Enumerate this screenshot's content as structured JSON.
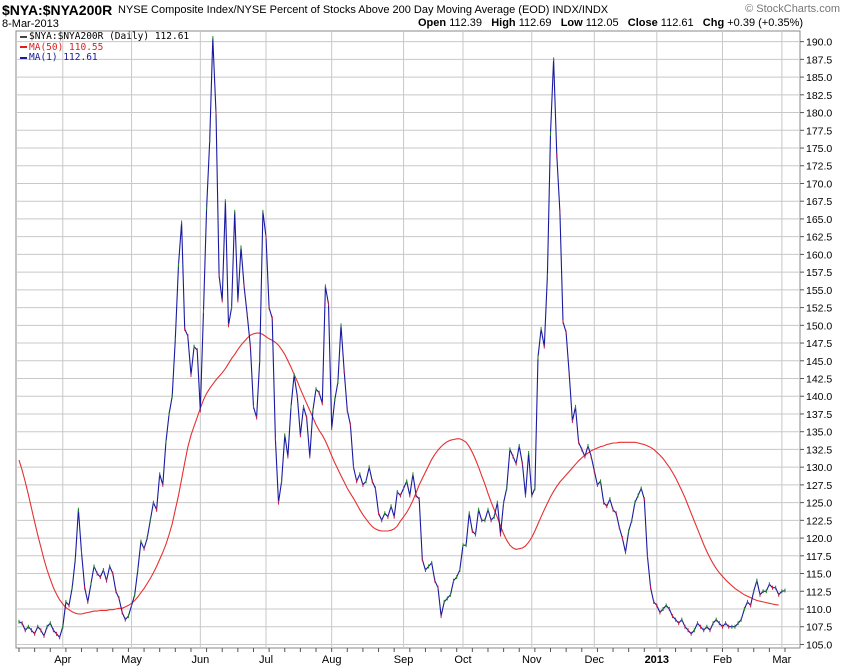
{
  "header": {
    "symbol": "$NYA:$NYA200R",
    "description": "NYSE Composite Index/NYSE Percent of Stocks Above 200 Day Moving Average (EOD)  INDX/INDX",
    "watermark": "© StockCharts.com",
    "date": "8-Mar-2013",
    "open_label": "Open",
    "open": "112.39",
    "high_label": "High",
    "high": "112.69",
    "low_label": "Low",
    "low": "112.05",
    "close_label": "Close",
    "close": "112.61",
    "chg_label": "Chg",
    "chg": "+0.39 (+0.35%)"
  },
  "legend": [
    {
      "text": "$NYA:$NYA200R (Daily) 112.61",
      "color": "#444444"
    },
    {
      "text": "MA(50) 110.55",
      "color": "#e02020"
    },
    {
      "text": "MA(1) 112.61",
      "color": "#1a1aa0"
    }
  ],
  "colors": {
    "price": "#1a1aa0",
    "ma50": "#e63030",
    "grid": "#c8c8c8",
    "up_tick": "#1f8a1f",
    "down_tick": "#c0204a"
  },
  "chart_data": {
    "type": "line",
    "xlabel": "",
    "ylabel": "",
    "ylim": [
      104.5,
      191.5
    ],
    "y_ticks": [
      105.0,
      107.5,
      110.0,
      112.5,
      115.0,
      117.5,
      120.0,
      122.5,
      125.0,
      127.5,
      130.0,
      132.5,
      135.0,
      137.5,
      140.0,
      142.5,
      145.0,
      147.5,
      150.0,
      152.5,
      155.0,
      157.5,
      160.0,
      162.5,
      165.0,
      167.5,
      170.0,
      172.5,
      175.0,
      177.5,
      180.0,
      182.5,
      185.0,
      187.5,
      190.0
    ],
    "x_ticks": [
      {
        "label": "Apr",
        "idx": 14,
        "bold": false
      },
      {
        "label": "May",
        "idx": 36,
        "bold": false
      },
      {
        "label": "Jun",
        "idx": 58,
        "bold": false
      },
      {
        "label": "Jul",
        "idx": 79,
        "bold": false
      },
      {
        "label": "Aug",
        "idx": 100,
        "bold": false
      },
      {
        "label": "Sep",
        "idx": 123,
        "bold": false
      },
      {
        "label": "Oct",
        "idx": 142,
        "bold": false
      },
      {
        "label": "Nov",
        "idx": 164,
        "bold": false
      },
      {
        "label": "Dec",
        "idx": 184,
        "bold": false
      },
      {
        "label": "2013",
        "idx": 204,
        "bold": true
      },
      {
        "label": "Feb",
        "idx": 225,
        "bold": false
      },
      {
        "label": "Mar",
        "idx": 244,
        "bold": false
      }
    ],
    "series": [
      {
        "name": "MA(1)",
        "values": [
          108.2,
          108.0,
          107.0,
          107.5,
          107.0,
          106.5,
          107.5,
          107.0,
          106.2,
          107.5,
          108.0,
          107.0,
          106.5,
          106.0,
          107.5,
          111.0,
          110.5,
          113.0,
          117.0,
          124.0,
          118.0,
          113.0,
          111.0,
          113.5,
          116.0,
          115.0,
          114.5,
          115.5,
          114.0,
          116.0,
          115.0,
          112.5,
          111.5,
          109.5,
          108.5,
          109.0,
          110.5,
          112.0,
          115.5,
          119.5,
          118.5,
          120.0,
          122.5,
          125.0,
          124.0,
          129.0,
          127.5,
          133.5,
          137.5,
          140.0,
          148.0,
          158.5,
          164.5,
          149.5,
          148.5,
          143.0,
          147.0,
          146.5,
          138.0,
          152.0,
          166.5,
          176.0,
          190.5,
          180.0,
          157.0,
          153.5,
          167.5,
          150.0,
          152.5,
          166.0,
          153.5,
          161.0,
          155.5,
          151.5,
          147.0,
          138.5,
          137.0,
          145.0,
          166.0,
          162.5,
          152.5,
          151.0,
          134.0,
          125.0,
          128.0,
          134.5,
          131.5,
          138.5,
          143.0,
          140.0,
          134.5,
          138.5,
          137.0,
          131.5,
          138.0,
          141.0,
          140.5,
          139.0,
          155.5,
          153.0,
          135.5,
          139.5,
          142.0,
          150.0,
          143.5,
          138.0,
          136.0,
          130.0,
          128.0,
          129.0,
          127.5,
          128.0,
          130.0,
          128.0,
          127.0,
          123.5,
          122.5,
          123.5,
          123.0,
          124.5,
          123.0,
          126.5,
          126.0,
          127.0,
          128.0,
          126.0,
          129.0,
          126.0,
          125.5,
          117.0,
          115.5,
          116.0,
          116.5,
          114.0,
          113.0,
          109.0,
          111.0,
          111.5,
          112.0,
          114.0,
          114.5,
          115.5,
          119.0,
          119.0,
          123.5,
          121.0,
          120.5,
          124.0,
          122.5,
          122.5,
          124.0,
          122.5,
          123.0,
          125.0,
          120.5,
          125.0,
          127.0,
          132.5,
          131.5,
          130.5,
          133.0,
          130.5,
          126.0,
          132.0,
          126.0,
          127.0,
          145.5,
          149.5,
          147.0,
          157.0,
          177.0,
          187.5,
          174.0,
          166.0,
          150.5,
          149.0,
          143.0,
          136.5,
          138.5,
          133.5,
          132.5,
          131.5,
          133.0,
          131.5,
          129.5,
          127.5,
          128.0,
          125.0,
          124.5,
          125.5,
          124.0,
          123.5,
          121.5,
          120.0,
          118.0,
          121.0,
          122.5,
          125.0,
          126.0,
          127.0,
          125.5,
          117.5,
          113.0,
          111.0,
          110.5,
          109.5,
          110.0,
          110.5,
          110.0,
          109.0,
          108.5,
          108.0,
          108.5,
          107.5,
          107.0,
          106.5,
          107.0,
          108.0,
          107.5,
          107.0,
          107.5,
          107.0,
          108.0,
          108.5,
          108.0,
          107.5,
          108.0,
          107.5,
          107.5,
          107.5,
          108.0,
          108.5,
          110.0,
          111.0,
          110.5,
          112.5,
          114.0,
          112.0,
          112.5,
          112.5,
          113.5,
          113.0,
          113.0,
          112.0,
          112.5,
          112.6
        ]
      },
      {
        "name": "MA(50)",
        "values": [
          131.0,
          129.6,
          127.9,
          126.1,
          124.2,
          122.3,
          120.4,
          118.7,
          117.0,
          115.5,
          114.2,
          113.0,
          112.1,
          111.3,
          110.7,
          110.2,
          109.9,
          109.6,
          109.4,
          109.3,
          109.3,
          109.4,
          109.5,
          109.6,
          109.7,
          109.7,
          109.8,
          109.8,
          109.8,
          109.9,
          109.9,
          110.0,
          110.1,
          110.1,
          110.3,
          110.5,
          110.8,
          111.2,
          111.7,
          112.3,
          112.9,
          113.6,
          114.3,
          115.1,
          116.0,
          117.0,
          118.0,
          119.1,
          120.5,
          122.0,
          124.0,
          126.0,
          128.3,
          130.6,
          132.8,
          134.5,
          135.8,
          137.0,
          138.3,
          139.5,
          140.4,
          141.1,
          141.7,
          142.3,
          142.8,
          143.3,
          143.9,
          144.6,
          145.3,
          145.9,
          146.6,
          147.2,
          147.7,
          148.2,
          148.6,
          148.8,
          148.9,
          148.9,
          148.7,
          148.4,
          148.1,
          147.9,
          147.6,
          147.2,
          146.6,
          145.9,
          145.0,
          144.1,
          143.1,
          142.1,
          141.0,
          140.0,
          139.0,
          138.0,
          137.0,
          136.0,
          135.2,
          134.5,
          133.7,
          132.7,
          131.6,
          130.6,
          129.7,
          128.8,
          127.9,
          127.0,
          126.3,
          125.6,
          124.8,
          124.0,
          123.3,
          122.7,
          122.1,
          121.6,
          121.3,
          121.1,
          121.0,
          121.0,
          121.0,
          121.1,
          121.3,
          121.7,
          122.4,
          123.0,
          123.6,
          124.4,
          125.3,
          126.4,
          127.5,
          128.4,
          129.3,
          130.2,
          131.1,
          131.8,
          132.4,
          132.9,
          133.3,
          133.6,
          133.8,
          133.9,
          134.0,
          134.0,
          133.8,
          133.5,
          132.9,
          132.1,
          131.1,
          130.0,
          128.8,
          127.6,
          126.3,
          125.1,
          124.0,
          122.9,
          121.7,
          120.6,
          119.7,
          119.0,
          118.6,
          118.4,
          118.5,
          118.6,
          118.9,
          119.4,
          120.1,
          121.0,
          122.0,
          123.0,
          124.0,
          124.9,
          125.8,
          126.6,
          127.3,
          127.9,
          128.4,
          128.9,
          129.4,
          129.9,
          130.4,
          130.9,
          131.3,
          131.7,
          132.0,
          132.3,
          132.5,
          132.7,
          132.9,
          133.0,
          133.2,
          133.3,
          133.4,
          133.4,
          133.5,
          133.5,
          133.5,
          133.5,
          133.5,
          133.5,
          133.4,
          133.3,
          133.2,
          133.0,
          132.8,
          132.5,
          132.1,
          131.7,
          131.2,
          130.6,
          130.0,
          129.3,
          128.5,
          127.6,
          126.7,
          125.7,
          124.6,
          123.5,
          122.4,
          121.3,
          120.2,
          119.1,
          118.1,
          117.2,
          116.4,
          115.7,
          115.1,
          114.6,
          114.1,
          113.7,
          113.3,
          112.9,
          112.6,
          112.3,
          112.0,
          111.8,
          111.6,
          111.4,
          111.2,
          111.1,
          111.0,
          110.9,
          110.8,
          110.7,
          110.6,
          110.55
        ]
      }
    ]
  }
}
